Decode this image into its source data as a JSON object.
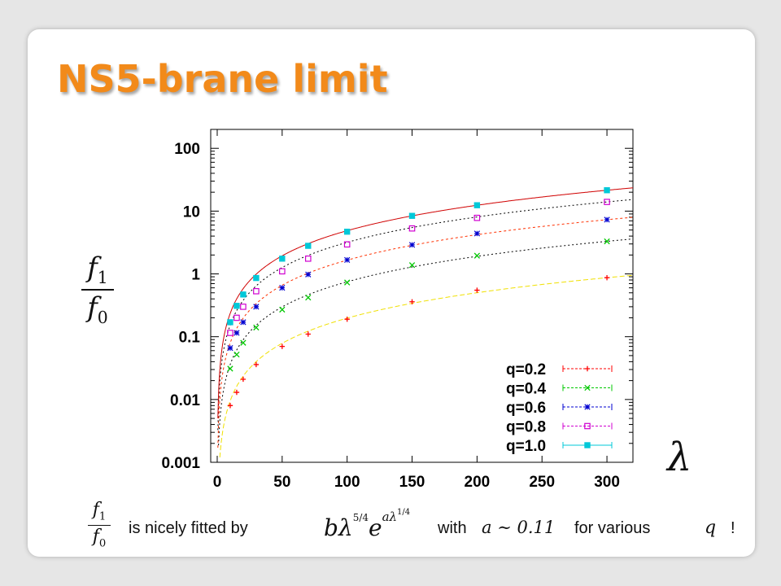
{
  "slide": {
    "title": "NS5-brane limit"
  },
  "labels": {
    "y_num": "f",
    "y_num_sub": "1",
    "y_den": "f",
    "y_den_sub": "0",
    "x_symbol": "λ"
  },
  "caption": {
    "frac_num": "f",
    "frac_num_sub": "1",
    "frac_den": "f",
    "frac_den_sub": "0",
    "text1": "is nicely fitted by",
    "formula": "bλ^(5/4) e^(aλ^(1/4))",
    "formula_b": "b",
    "formula_lambda": "λ",
    "formula_exp1": "5/4",
    "formula_e": "e",
    "formula_exp2": "aλ",
    "formula_exp3": "1/4",
    "text2": "with",
    "condition": "a ∼ 0.11",
    "text3": "for various",
    "var_q": "q",
    "text4": "!"
  },
  "chart_data": {
    "type": "scatter",
    "y_scale": "log",
    "xlim": [
      -5,
      320
    ],
    "ylim": [
      0.001,
      200
    ],
    "x_ticks": [
      "0",
      "50",
      "100",
      "150",
      "200",
      "250",
      "300"
    ],
    "y_ticks": [
      "0.001",
      "0.01",
      "0.1",
      "1",
      "10",
      "100"
    ],
    "legend_position": "bottom-right",
    "grid": false,
    "series": [
      {
        "name": "q=0.2",
        "color": "#ff0000",
        "marker": "plus",
        "x": [
          10,
          15,
          20,
          30,
          50,
          70,
          100,
          150,
          200,
          300
        ],
        "y": [
          0.008,
          0.013,
          0.021,
          0.036,
          0.07,
          0.11,
          0.19,
          0.36,
          0.55,
          0.87
        ]
      },
      {
        "name": "q=0.4",
        "color": "#00c800",
        "marker": "cross",
        "x": [
          10,
          15,
          20,
          30,
          50,
          70,
          100,
          150,
          200,
          300
        ],
        "y": [
          0.031,
          0.052,
          0.08,
          0.14,
          0.27,
          0.42,
          0.73,
          1.38,
          1.95,
          3.3
        ]
      },
      {
        "name": "q=0.6",
        "color": "#0000d0",
        "marker": "star",
        "x": [
          10,
          15,
          20,
          30,
          50,
          70,
          100,
          150,
          200,
          300
        ],
        "y": [
          0.066,
          0.115,
          0.17,
          0.3,
          0.6,
          0.98,
          1.67,
          2.9,
          4.4,
          7.3
        ]
      },
      {
        "name": "q=0.8",
        "color": "#d000d0",
        "marker": "square-open",
        "x": [
          10,
          15,
          20,
          30,
          50,
          70,
          100,
          150,
          200,
          300
        ],
        "y": [
          0.115,
          0.2,
          0.3,
          0.53,
          1.1,
          1.75,
          2.95,
          5.3,
          7.8,
          14.0
        ]
      },
      {
        "name": "q=1.0",
        "color": "#00c8d8",
        "marker": "square-filled",
        "x": [
          10,
          15,
          20,
          30,
          50,
          70,
          100,
          150,
          200,
          300
        ],
        "y": [
          0.17,
          0.31,
          0.47,
          0.86,
          1.75,
          2.8,
          4.7,
          8.4,
          12.4,
          21.5
        ]
      }
    ],
    "fit_curves": [
      {
        "series": "q=0.2",
        "color": "#f0e000",
        "dash": "6,3",
        "y_at_300": 0.87
      },
      {
        "series": "q=0.4",
        "color": "#000000",
        "dash": "2,3",
        "y_at_300": 3.3
      },
      {
        "series": "q=0.6",
        "color": "#ff3000",
        "dash": "3,3",
        "y_at_300": 7.3
      },
      {
        "series": "q=0.8",
        "color": "#000000",
        "dash": "2,3",
        "y_at_300": 14.0
      },
      {
        "series": "q=1.0",
        "color": "#d00000",
        "dash": "",
        "y_at_300": 21.5
      }
    ]
  }
}
